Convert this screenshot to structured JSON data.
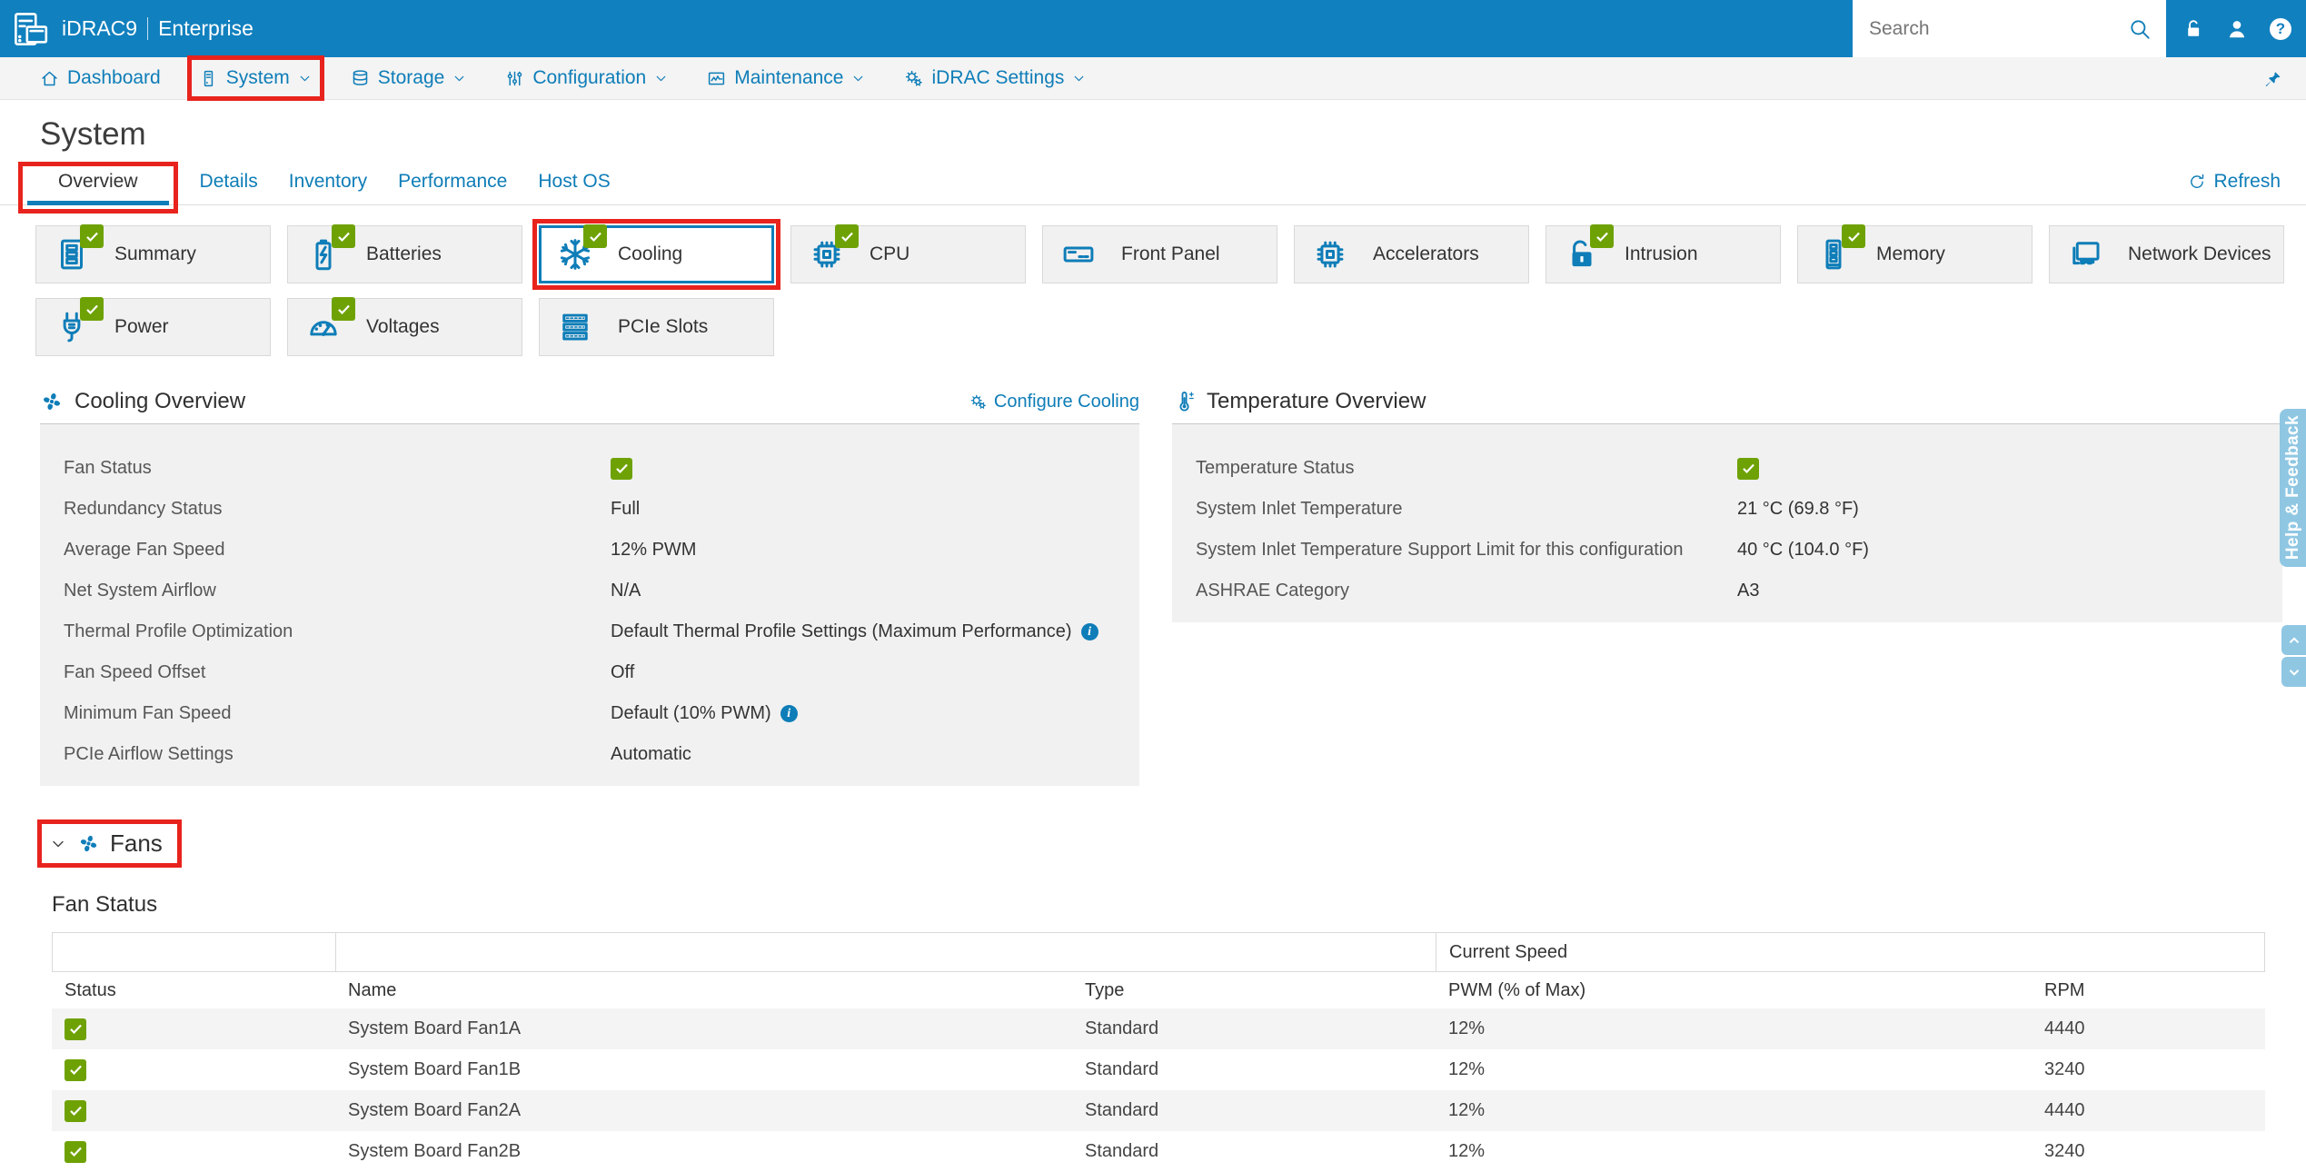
{
  "masthead": {
    "product": "iDRAC9",
    "edition": "Enterprise",
    "search_placeholder": "Search",
    "action_icons": [
      "unlock-icon",
      "user-icon",
      "help-icon"
    ]
  },
  "nav": {
    "items": [
      {
        "label": "Dashboard",
        "icon": "home-icon",
        "dropdown": false,
        "annotated": false
      },
      {
        "label": "System",
        "icon": "server-icon",
        "dropdown": true,
        "annotated": true
      },
      {
        "label": "Storage",
        "icon": "storage-icon",
        "dropdown": true,
        "annotated": false
      },
      {
        "label": "Configuration",
        "icon": "sliders-icon",
        "dropdown": true,
        "annotated": false
      },
      {
        "label": "Maintenance",
        "icon": "maintenance-icon",
        "dropdown": true,
        "annotated": false
      },
      {
        "label": "iDRAC Settings",
        "icon": "gears-icon",
        "dropdown": true,
        "annotated": false
      }
    ],
    "pin_icon": "pin-icon"
  },
  "page": {
    "title": "System",
    "tabs": [
      {
        "label": "Overview",
        "active": true,
        "annotated": true
      },
      {
        "label": "Details",
        "active": false,
        "annotated": false
      },
      {
        "label": "Inventory",
        "active": false,
        "annotated": false
      },
      {
        "label": "Performance",
        "active": false,
        "annotated": false
      },
      {
        "label": "Host OS",
        "active": false,
        "annotated": false
      }
    ],
    "refresh_label": "Refresh"
  },
  "tiles": [
    {
      "label": "Summary",
      "icon": "summary-icon",
      "ok": true,
      "selected": false,
      "annotated": false
    },
    {
      "label": "Batteries",
      "icon": "battery-icon",
      "ok": true,
      "selected": false,
      "annotated": false
    },
    {
      "label": "Cooling",
      "icon": "snowflake-icon",
      "ok": true,
      "selected": true,
      "annotated": true
    },
    {
      "label": "CPU",
      "icon": "cpu-icon",
      "ok": true,
      "selected": false,
      "annotated": false
    },
    {
      "label": "Front Panel",
      "icon": "front-panel-icon",
      "ok": false,
      "selected": false,
      "annotated": false
    },
    {
      "label": "Accelerators",
      "icon": "accelerator-icon",
      "ok": false,
      "selected": false,
      "annotated": false
    },
    {
      "label": "Intrusion",
      "icon": "lock-icon",
      "ok": true,
      "selected": false,
      "annotated": false
    },
    {
      "label": "Memory",
      "icon": "memory-icon",
      "ok": true,
      "selected": false,
      "annotated": false
    },
    {
      "label": "Network Devices",
      "icon": "network-icon",
      "ok": false,
      "selected": false,
      "annotated": false
    },
    {
      "label": "Power",
      "icon": "power-icon",
      "ok": true,
      "selected": false,
      "annotated": false
    },
    {
      "label": "Voltages",
      "icon": "gauge-icon",
      "ok": true,
      "selected": false,
      "annotated": false
    },
    {
      "label": "PCIe Slots",
      "icon": "pcie-icon",
      "ok": false,
      "selected": false,
      "annotated": false
    }
  ],
  "cooling_overview": {
    "title": "Cooling Overview",
    "configure_label": "Configure Cooling",
    "rows": [
      {
        "label": "Fan Status",
        "value": "",
        "status_ok": true,
        "info": false
      },
      {
        "label": "Redundancy Status",
        "value": "Full",
        "status_ok": false,
        "info": false
      },
      {
        "label": "Average Fan Speed",
        "value": "12% PWM",
        "status_ok": false,
        "info": false
      },
      {
        "label": "Net System Airflow",
        "value": "N/A",
        "status_ok": false,
        "info": false
      },
      {
        "label": "Thermal Profile Optimization",
        "value": "Default Thermal Profile Settings (Maximum Performance)",
        "status_ok": false,
        "info": true
      },
      {
        "label": "Fan Speed Offset",
        "value": "Off",
        "status_ok": false,
        "info": false
      },
      {
        "label": "Minimum Fan Speed",
        "value": "Default (10% PWM)",
        "status_ok": false,
        "info": true
      },
      {
        "label": "PCIe Airflow Settings",
        "value": "Automatic",
        "status_ok": false,
        "info": false
      }
    ]
  },
  "temperature_overview": {
    "title": "Temperature Overview",
    "rows": [
      {
        "label": "Temperature Status",
        "value": "",
        "status_ok": true,
        "info": false
      },
      {
        "label": "System Inlet Temperature",
        "value": "21 °C (69.8 °F)",
        "status_ok": false,
        "info": false
      },
      {
        "label": "System Inlet Temperature Support Limit for this configuration",
        "value": "40 °C (104.0 °F)",
        "status_ok": false,
        "info": false
      },
      {
        "label": "ASHRAE Category",
        "value": "A3",
        "status_ok": false,
        "info": false
      }
    ]
  },
  "fans_section": {
    "title": "Fans",
    "table_title": "Fan Status",
    "group_header": "Current Speed",
    "columns": [
      "Status",
      "Name",
      "Type",
      "PWM (% of Max)",
      "RPM"
    ],
    "rows": [
      {
        "status_ok": true,
        "name": "System Board Fan1A",
        "type": "Standard",
        "pwm": "12%",
        "rpm": "4440"
      },
      {
        "status_ok": true,
        "name": "System Board Fan1B",
        "type": "Standard",
        "pwm": "12%",
        "rpm": "3240"
      },
      {
        "status_ok": true,
        "name": "System Board Fan2A",
        "type": "Standard",
        "pwm": "12%",
        "rpm": "4440"
      },
      {
        "status_ok": true,
        "name": "System Board Fan2B",
        "type": "Standard",
        "pwm": "12%",
        "rpm": "3240"
      }
    ]
  },
  "side": {
    "help_feedback_label": "Help & Feedback"
  },
  "colors": {
    "masthead_blue": "#1180be",
    "accent_blue": "#0e7db8",
    "status_green": "#6ea204",
    "annotation_red": "#e8231d",
    "light_blue": "#8fc7e3"
  }
}
